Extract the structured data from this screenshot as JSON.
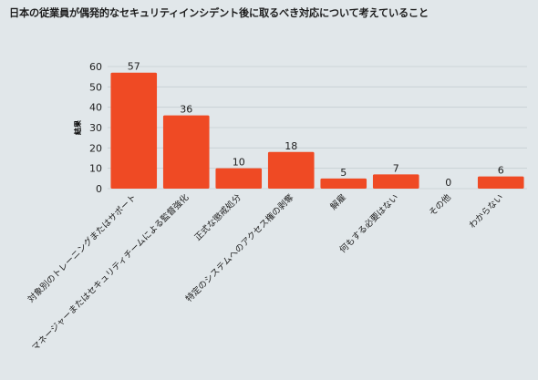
{
  "chart_data": {
    "type": "bar",
    "title": "日本の従業員が偶発的なセキュリティインシデント後に取るべき対応について考えていること",
    "ylabel": "結果",
    "xlabel": "",
    "ylim": [
      0,
      60
    ],
    "yticks": [
      0,
      10,
      20,
      30,
      40,
      50,
      60
    ],
    "grid": true,
    "categories": [
      "対象別のトレーニングまたはサポート",
      "マネージャーまたはセキュリティチームによる監督強化",
      "正式な懲戒処分",
      "特定のシステムへのアクセス権の剥奪",
      "解雇",
      "何もする必要はない",
      "その他",
      "わからない"
    ],
    "values": [
      57,
      36,
      10,
      18,
      5,
      7,
      0,
      6
    ],
    "colors": {
      "bar": "#ef4a24",
      "grid": "#c6ced2",
      "background": "#e1e7ea"
    }
  }
}
